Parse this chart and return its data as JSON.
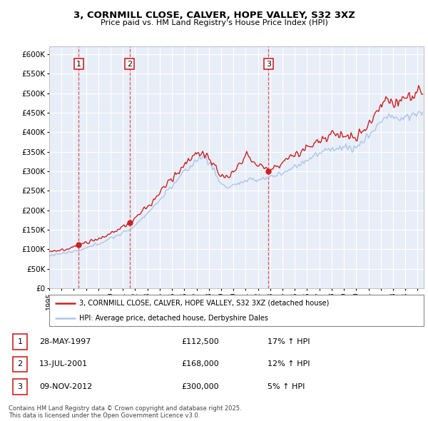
{
  "title": "3, CORNMILL CLOSE, CALVER, HOPE VALLEY, S32 3XZ",
  "subtitle": "Price paid vs. HM Land Registry's House Price Index (HPI)",
  "ylim": [
    0,
    620000
  ],
  "yticks": [
    0,
    50000,
    100000,
    150000,
    200000,
    250000,
    300000,
    350000,
    400000,
    450000,
    500000,
    550000,
    600000
  ],
  "ytick_labels": [
    "£0",
    "£50K",
    "£100K",
    "£150K",
    "£200K",
    "£250K",
    "£300K",
    "£350K",
    "£400K",
    "£450K",
    "£500K",
    "£550K",
    "£600K"
  ],
  "xlim": [
    1995,
    2025.5
  ],
  "xticks": [
    1995,
    1996,
    1997,
    1998,
    1999,
    2000,
    2001,
    2002,
    2003,
    2004,
    2005,
    2006,
    2007,
    2008,
    2009,
    2010,
    2011,
    2012,
    2013,
    2014,
    2015,
    2016,
    2017,
    2018,
    2019,
    2020,
    2021,
    2022,
    2023,
    2024,
    2025
  ],
  "hpi_color": "#aec6e8",
  "price_color": "#cc2222",
  "dot_color": "#cc2222",
  "vline_color": "#dd4444",
  "background_color": "#e8eef8",
  "grid_color": "#ffffff",
  "legend_entries": [
    {
      "label": "3, CORNMILL CLOSE, CALVER, HOPE VALLEY, S32 3XZ (detached house)",
      "color": "#cc2222"
    },
    {
      "label": "HPI: Average price, detached house, Derbyshire Dales",
      "color": "#aec6e8"
    }
  ],
  "transactions": [
    {
      "label": "1",
      "date": "28-MAY-1997",
      "price": 112500,
      "hpi_pct": "17% ↑ HPI",
      "x_year": 1997.4
    },
    {
      "label": "2",
      "date": "13-JUL-2001",
      "price": 168000,
      "hpi_pct": "12% ↑ HPI",
      "x_year": 2001.55
    },
    {
      "label": "3",
      "date": "09-NOV-2012",
      "price": 300000,
      "hpi_pct": "5% ↑ HPI",
      "x_year": 2012.85
    }
  ],
  "table_rows": [
    [
      "1",
      "28-MAY-1997",
      "£112,500",
      "17% ↑ HPI"
    ],
    [
      "2",
      "13-JUL-2001",
      "£168,000",
      "12% ↑ HPI"
    ],
    [
      "3",
      "09-NOV-2012",
      "£300,000",
      "5% ↑ HPI"
    ]
  ],
  "footnote": "Contains HM Land Registry data © Crown copyright and database right 2025.\nThis data is licensed under the Open Government Licence v3.0."
}
